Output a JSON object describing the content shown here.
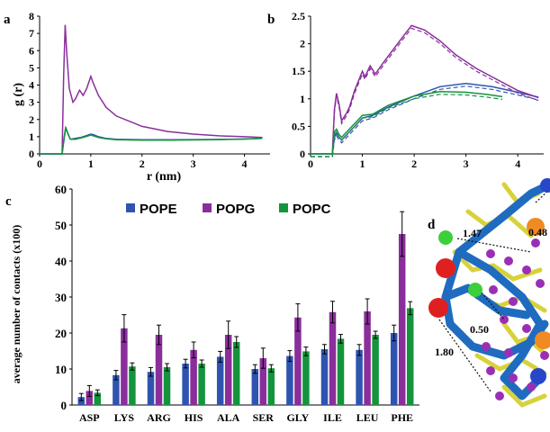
{
  "chart_data": [
    {
      "panel": "a",
      "type": "line",
      "xlabel": "r (nm)",
      "ylabel": "g (r)",
      "xlim": [
        0,
        4.5
      ],
      "ylim": [
        0,
        8
      ],
      "xticks": [
        "0",
        "1",
        "2",
        "3",
        "4"
      ],
      "yticks": [
        "0",
        "1",
        "2",
        "3",
        "4",
        "5",
        "6",
        "7",
        "8"
      ],
      "colors": [
        "#2f54b0",
        "#8a2e9b",
        "#14943c"
      ],
      "series": [
        {
          "color": "#2f54b0",
          "x": [
            0,
            0.44,
            0.48,
            0.51,
            0.55,
            0.6,
            0.7,
            0.8,
            0.9,
            1.0,
            1.05,
            1.15,
            1.3,
            1.5,
            2.0,
            2.5,
            3.0,
            3.5,
            4.0,
            4.35
          ],
          "y": [
            0,
            0,
            0.9,
            1.5,
            1.2,
            0.85,
            0.9,
            0.95,
            1.05,
            1.15,
            1.12,
            1.0,
            0.9,
            0.85,
            0.82,
            0.82,
            0.83,
            0.84,
            0.87,
            0.9
          ]
        },
        {
          "color": "#8a2e9b",
          "x": [
            0,
            0.44,
            0.47,
            0.5,
            0.53,
            0.58,
            0.65,
            0.7,
            0.78,
            0.85,
            0.92,
            1.0,
            1.05,
            1.15,
            1.3,
            1.5,
            2.0,
            2.5,
            3.0,
            3.5,
            4.0,
            4.35
          ],
          "y": [
            0,
            0,
            4.5,
            7.5,
            5.8,
            3.8,
            3.0,
            3.2,
            3.7,
            3.4,
            3.8,
            4.5,
            4.1,
            3.4,
            2.7,
            2.2,
            1.6,
            1.3,
            1.15,
            1.05,
            1.0,
            0.95
          ]
        },
        {
          "color": "#14943c",
          "x": [
            0,
            0.44,
            0.48,
            0.51,
            0.55,
            0.6,
            0.7,
            0.8,
            0.9,
            1.0,
            1.05,
            1.15,
            1.3,
            1.5,
            2.0,
            2.5,
            3.0,
            3.5,
            4.0,
            4.35
          ],
          "y": [
            0,
            0,
            1.0,
            1.55,
            1.2,
            0.85,
            0.85,
            0.92,
            1.0,
            1.1,
            1.05,
            0.95,
            0.88,
            0.82,
            0.8,
            0.8,
            0.81,
            0.83,
            0.86,
            0.9
          ]
        }
      ]
    },
    {
      "panel": "b",
      "type": "line",
      "xlim": [
        0,
        4.5
      ],
      "ylim": [
        0,
        2.5
      ],
      "xticks": [
        "0",
        "1",
        "2",
        "3",
        "4"
      ],
      "yticks": [
        "0",
        "0.5",
        "1",
        "1.5",
        "2",
        "2.5"
      ],
      "colors": [
        "#2f54b0",
        "#8a2e9b",
        "#14943c"
      ],
      "series": [
        {
          "color": "#2f54b0",
          "x": [
            0,
            0.42,
            0.46,
            0.5,
            0.55,
            0.6,
            0.7,
            0.8,
            1.0,
            1.2,
            1.5,
            2.0,
            2.5,
            3.0,
            3.5,
            4.0,
            4.4
          ],
          "y": [
            0,
            0,
            0.3,
            0.38,
            0.3,
            0.25,
            0.35,
            0.45,
            0.65,
            0.7,
            0.85,
            1.05,
            1.22,
            1.28,
            1.22,
            1.12,
            1.03
          ]
        },
        {
          "color": "#8a2e9b",
          "x": [
            0,
            0.42,
            0.46,
            0.5,
            0.55,
            0.6,
            0.7,
            0.75,
            0.85,
            1.0,
            1.05,
            1.15,
            1.25,
            1.4,
            1.6,
            1.8,
            1.95,
            2.2,
            2.5,
            2.8,
            3.2,
            3.6,
            4.0,
            4.4
          ],
          "y": [
            0,
            0,
            0.8,
            1.1,
            0.9,
            0.6,
            0.75,
            0.85,
            1.15,
            1.5,
            1.4,
            1.6,
            1.45,
            1.65,
            1.9,
            2.15,
            2.33,
            2.25,
            2.05,
            1.8,
            1.55,
            1.35,
            1.15,
            1.02
          ]
        },
        {
          "color": "#14943c",
          "x": [
            0,
            0.42,
            0.46,
            0.5,
            0.55,
            0.6,
            0.7,
            0.8,
            1.0,
            1.2,
            1.5,
            2.0,
            2.5,
            3.0,
            3.4,
            3.7
          ],
          "y": [
            0,
            0,
            0.4,
            0.45,
            0.35,
            0.3,
            0.4,
            0.5,
            0.7,
            0.72,
            0.88,
            1.05,
            1.13,
            1.12,
            1.08,
            1.04
          ]
        }
      ]
    },
    {
      "panel": "c",
      "type": "bar",
      "ylabel": "average number of contacts (x100)",
      "ylim": [
        0,
        60
      ],
      "yticks": [
        "0",
        "10",
        "20",
        "30",
        "40",
        "50",
        "60"
      ],
      "categories": [
        "ASP",
        "LYS",
        "ARG",
        "HIS",
        "ALA",
        "SER",
        "GLY",
        "ILE",
        "LEU",
        "PHE"
      ],
      "legend_position": "top",
      "series": [
        {
          "name": "POPE",
          "color": "#2f54b0",
          "values": [
            2.2,
            8.3,
            9.2,
            11.5,
            13.4,
            10.0,
            13.6,
            15.5,
            15.3,
            20.0
          ],
          "errors": [
            1.0,
            1.3,
            1.2,
            1.2,
            1.5,
            1.2,
            1.5,
            1.3,
            1.5,
            2.2
          ]
        },
        {
          "name": "POPG",
          "color": "#8a2e9b",
          "values": [
            3.9,
            21.3,
            19.5,
            15.3,
            19.5,
            13.0,
            24.3,
            25.8,
            26.0,
            47.5
          ],
          "errors": [
            1.5,
            3.8,
            2.7,
            2.2,
            3.8,
            2.8,
            3.8,
            3.0,
            3.5,
            6.2
          ]
        },
        {
          "name": "POPC",
          "color": "#14943c",
          "values": [
            3.4,
            10.7,
            10.5,
            11.5,
            17.5,
            10.2,
            14.9,
            18.4,
            19.5,
            26.9
          ],
          "errors": [
            0.8,
            1.0,
            1.0,
            1.0,
            1.5,
            1.0,
            1.2,
            1.2,
            1.0,
            1.8
          ]
        }
      ]
    }
  ],
  "panels": {
    "a": "a",
    "b": "b",
    "c": "c",
    "d": "d"
  },
  "molecule": {
    "labels": [
      "0.48",
      "1.47",
      "0.50",
      "1.80"
    ]
  }
}
